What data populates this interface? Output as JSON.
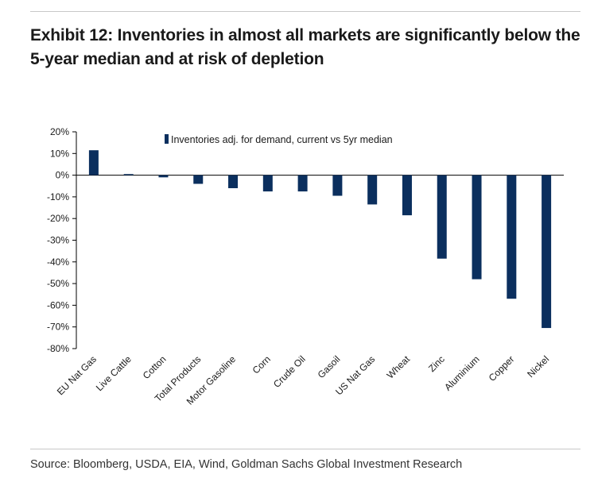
{
  "title": "Exhibit 12: Inventories in almost all markets are significantly below the 5-year median and at risk of depletion",
  "source": "Source: Bloomberg, USDA, EIA, Wind, Goldman Sachs Global Investment Research",
  "chart_data": {
    "type": "bar",
    "title": "Exhibit 12: Inventories in almost all markets are significantly below the 5-year median and at risk of depletion",
    "categories": [
      "EU Nat Gas",
      "Live Cattle",
      "Cotton",
      "Total Products",
      "Motor Gasoline",
      "Corn",
      "Crude Oil",
      "Gasoil",
      "US Nat Gas",
      "Wheat",
      "Zinc",
      "Aluminium",
      "Copper",
      "Nickel"
    ],
    "series": [
      {
        "name": "Inventories adj. for demand, current vs 5yr median",
        "values": [
          11.5,
          0.5,
          -1.0,
          -4.0,
          -6.0,
          -7.5,
          -7.5,
          -9.5,
          -13.5,
          -18.5,
          -38.5,
          -48.0,
          -57.0,
          -70.5
        ],
        "color": "#0b2f5e"
      }
    ],
    "xlabel": "",
    "ylabel": "",
    "ylim": [
      -80,
      20
    ],
    "yticks": [
      20,
      10,
      0,
      -10,
      -20,
      -30,
      -40,
      -50,
      -60,
      -70,
      -80
    ],
    "ytick_labels": [
      "20%",
      "10%",
      "0%",
      "-10%",
      "-20%",
      "-30%",
      "-40%",
      "-50%",
      "-60%",
      "-70%",
      "-80%"
    ],
    "grid": false,
    "legend_position": "top"
  }
}
